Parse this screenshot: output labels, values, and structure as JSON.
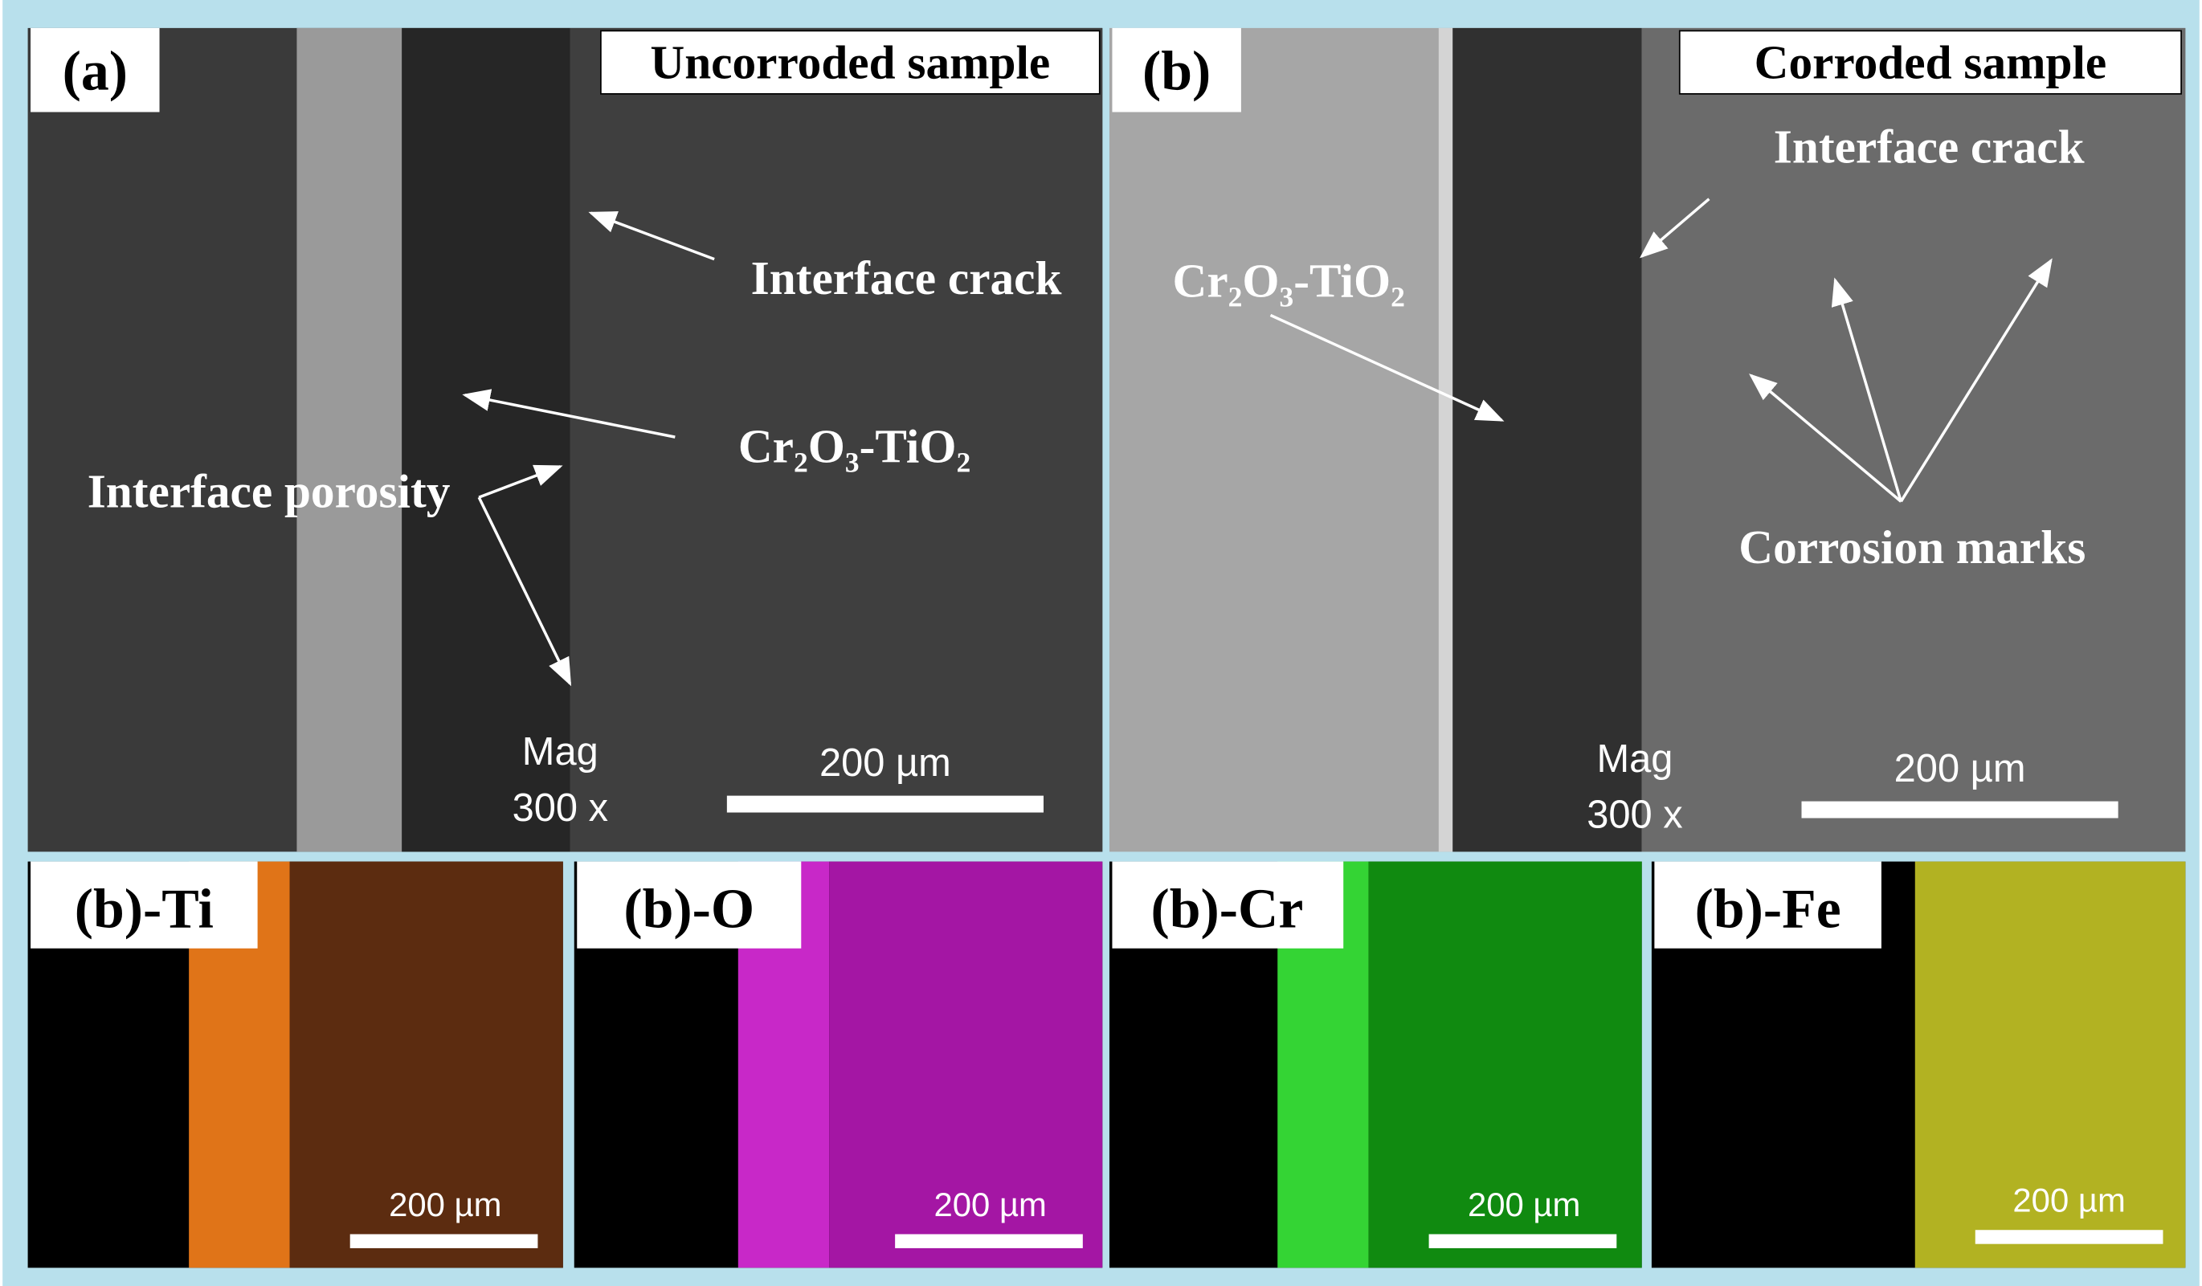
{
  "panels": [
    {
      "label": "(a)",
      "title": "Uncorroded sample",
      "annotations": [
        "Interface crack",
        "Cr₂O₃-TiO₂",
        "Interface porosity"
      ],
      "magnification": [
        "Mag",
        "300 x"
      ],
      "scale_bar": "200 µm"
    },
    {
      "label": "(b)",
      "title": "Corroded sample",
      "annotations": [
        "Interface crack",
        "Cr₂O₃-TiO₂",
        "Corrosion marks"
      ],
      "magnification": [
        "Mag",
        "300 x"
      ],
      "scale_bar": "200 µm"
    }
  ],
  "maps": [
    {
      "label": "(b)-Ti",
      "scale_bar": "200 µm"
    },
    {
      "label": "(b)-O",
      "scale_bar": "200 µm"
    },
    {
      "label": "(b)-Cr",
      "scale_bar": "200 µm"
    },
    {
      "label": "(b)-Fe",
      "scale_bar": "200 µm"
    }
  ]
}
